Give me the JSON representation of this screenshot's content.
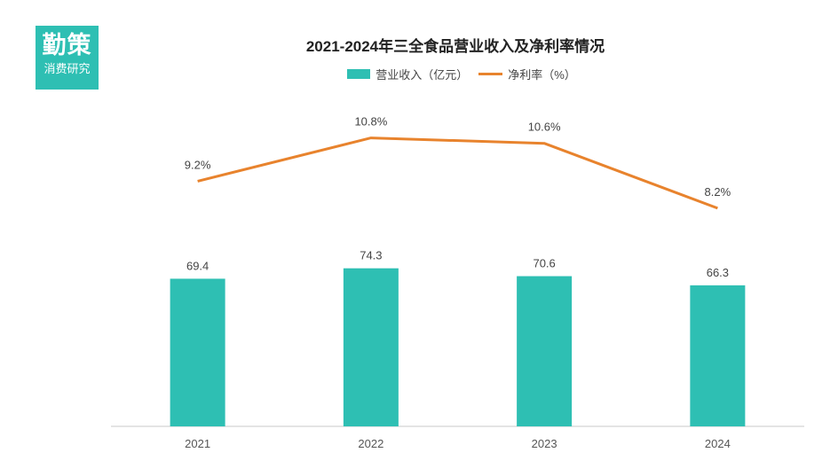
{
  "logo": {
    "main": "勤策",
    "sub": "消费研究"
  },
  "colors": {
    "bar": "#2ebfb3",
    "line": "#e8832d",
    "axis": "#c8c8c8"
  },
  "chart_data": {
    "type": "bar",
    "title": "2021-2024年三全食品营业收入及净利率情况",
    "categories": [
      "2021",
      "2022",
      "2023",
      "2024"
    ],
    "series": [
      {
        "name": "营业收入（亿元）",
        "type": "bar",
        "values": [
          69.4,
          74.3,
          70.6,
          66.3
        ],
        "labels": [
          "69.4",
          "74.3",
          "70.6",
          "66.3"
        ]
      },
      {
        "name": "净利率（%）",
        "type": "line",
        "values": [
          9.2,
          10.8,
          10.6,
          8.2
        ],
        "labels": [
          "9.2%",
          "10.8%",
          "10.6%",
          "8.2%"
        ]
      }
    ],
    "legend_position": "top-center",
    "grid": false,
    "ylim_bar": [
      0,
      100
    ],
    "ylim_line": [
      0,
      12
    ]
  }
}
